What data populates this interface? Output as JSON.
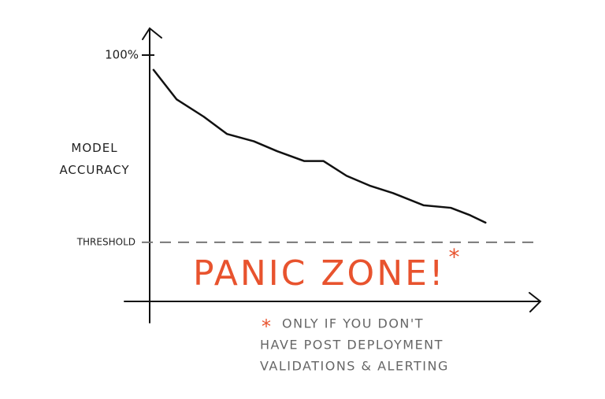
{
  "chart_data": {
    "type": "line",
    "y_label": "MODEL ACCURACY",
    "x": [
      1,
      7,
      14,
      20,
      27,
      33,
      40,
      45,
      51,
      57,
      63,
      71,
      78,
      83,
      87
    ],
    "values": [
      94,
      82,
      75,
      68,
      65,
      61,
      57,
      57,
      51,
      47,
      44,
      39,
      38,
      35,
      32
    ],
    "color": "#111111",
    "xlim": [
      0,
      100
    ],
    "ylim": [
      0,
      110
    ],
    "yticks": [
      {
        "value": 100,
        "label": "100%"
      }
    ],
    "threshold": {
      "value": 24,
      "label": "THRESHOLD"
    },
    "annotation": "PANIC ZONE!",
    "annotation_color": "#e8532e",
    "footnote_marker": "*",
    "footnote": [
      "ONLY IF YOU DON'T",
      "HAVE POST DEPLOYMENT",
      "VALIDATIONS & ALERTING"
    ]
  }
}
